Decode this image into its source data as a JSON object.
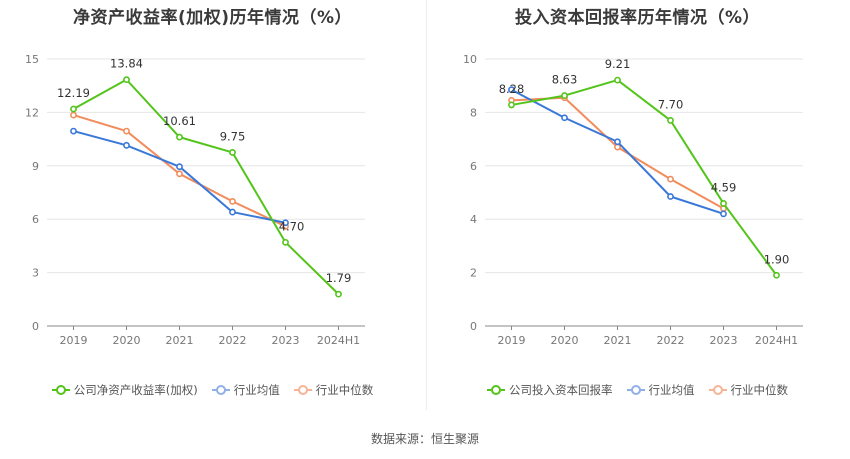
{
  "source": "数据来源：恒生聚源",
  "chart_data": [
    {
      "type": "line",
      "title": "净资产收益率(加权)历年情况（%）",
      "categories": [
        "2019",
        "2020",
        "2021",
        "2022",
        "2023",
        "2024H1"
      ],
      "yticks": [
        "0",
        "3",
        "6",
        "9",
        "12",
        "15"
      ],
      "ylim": [
        0,
        15
      ],
      "grid": true,
      "legend_position": "bottom",
      "series": [
        {
          "name": "公司净资产收益率(加权)",
          "color": "#52c41a",
          "values": [
            12.19,
            13.84,
            10.61,
            9.75,
            4.7,
            1.79
          ],
          "labels": [
            "12.19",
            "13.84",
            "10.61",
            "9.75",
            "4.70",
            "1.79"
          ]
        },
        {
          "name": "行业均值",
          "color": "#3a78d8",
          "values": [
            10.95,
            10.15,
            8.95,
            6.4,
            5.8,
            null
          ]
        },
        {
          "name": "行业中位数",
          "color": "#f28c5c",
          "values": [
            11.85,
            10.95,
            8.55,
            7.0,
            5.6,
            null
          ]
        }
      ]
    },
    {
      "type": "line",
      "title": "投入资本回报率历年情况（%）",
      "categories": [
        "2019",
        "2020",
        "2021",
        "2022",
        "2023",
        "2024H1"
      ],
      "yticks": [
        "0",
        "2",
        "4",
        "6",
        "8",
        "10"
      ],
      "ylim": [
        0,
        10
      ],
      "grid": true,
      "legend_position": "bottom",
      "series": [
        {
          "name": "公司投入资本回报率",
          "color": "#52c41a",
          "values": [
            8.28,
            8.63,
            9.21,
            7.7,
            4.59,
            1.9
          ],
          "labels": [
            "8.28",
            "8.63",
            "9.21",
            "7.70",
            "4.59",
            "1.90"
          ]
        },
        {
          "name": "行业均值",
          "color": "#3a78d8",
          "values": [
            8.85,
            7.8,
            6.9,
            4.85,
            4.2,
            null
          ]
        },
        {
          "name": "行业中位数",
          "color": "#f28c5c",
          "values": [
            8.45,
            8.55,
            6.7,
            5.5,
            4.4,
            null
          ]
        }
      ]
    }
  ]
}
